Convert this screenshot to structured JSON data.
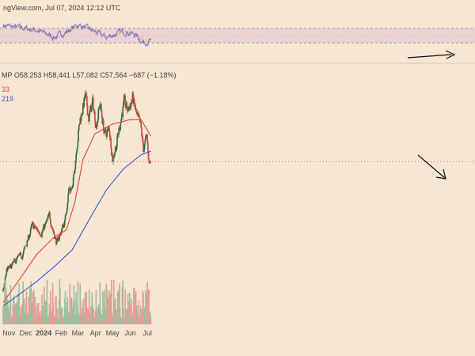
{
  "header": {
    "source_line": "ngView.com, Jul 07, 2024 12:12 UTC",
    "ohlc_line": "MP O58,253 H58,441 L57,082 C57,564 −687 (−1.18%)",
    "ma_red_label": "33",
    "ma_blue_label": "219"
  },
  "colors": {
    "background": "#f6e6d2",
    "candle_up": "#2e6e3a",
    "candle_down": "#c9443a",
    "volume_up": "#9dbfa0",
    "volume_down": "#ec9a93",
    "ma_short": "#e2473f",
    "ma_long": "#3d57e6",
    "oscillator": "#7b6fd0",
    "oscillator_signal": "#d8c15a",
    "annotation": "#111111",
    "axis_text": "#4c4c4c"
  },
  "chart_data": {
    "type": "candlestick",
    "title": "",
    "x_tick_labels": [
      "Nov",
      "Dec",
      "2024",
      "Feb",
      "Mar",
      "Apr",
      "May",
      "Jun",
      "Jul"
    ],
    "y_range": [
      22000,
      76000
    ],
    "last_close": 57564,
    "grid": false,
    "price_points": [
      {
        "date": "2023-10-22",
        "close": 29900
      },
      {
        "date": "2023-10-28",
        "close": 34500
      },
      {
        "date": "2023-11-05",
        "close": 35100
      },
      {
        "date": "2023-11-15",
        "close": 36800
      },
      {
        "date": "2023-11-25",
        "close": 37600
      },
      {
        "date": "2023-12-05",
        "close": 41200
      },
      {
        "date": "2023-12-12",
        "close": 43900
      },
      {
        "date": "2023-12-20",
        "close": 43000
      },
      {
        "date": "2023-12-28",
        "close": 42500
      },
      {
        "date": "2024-01-05",
        "close": 44200
      },
      {
        "date": "2024-01-11",
        "close": 46000
      },
      {
        "date": "2024-01-18",
        "close": 42800
      },
      {
        "date": "2024-01-24",
        "close": 40000
      },
      {
        "date": "2024-02-01",
        "close": 42800
      },
      {
        "date": "2024-02-08",
        "close": 45300
      },
      {
        "date": "2024-02-14",
        "close": 51700
      },
      {
        "date": "2024-02-21",
        "close": 51900
      },
      {
        "date": "2024-02-28",
        "close": 61000
      },
      {
        "date": "2024-03-05",
        "close": 66500
      },
      {
        "date": "2024-03-14",
        "close": 71400
      },
      {
        "date": "2024-03-20",
        "close": 67000
      },
      {
        "date": "2024-03-27",
        "close": 70000
      },
      {
        "date": "2024-04-02",
        "close": 65500
      },
      {
        "date": "2024-04-09",
        "close": 70000
      },
      {
        "date": "2024-04-17",
        "close": 63200
      },
      {
        "date": "2024-04-25",
        "close": 64500
      },
      {
        "date": "2024-05-01",
        "close": 58300
      },
      {
        "date": "2024-05-08",
        "close": 61500
      },
      {
        "date": "2024-05-15",
        "close": 66300
      },
      {
        "date": "2024-05-21",
        "close": 70100
      },
      {
        "date": "2024-05-28",
        "close": 68400
      },
      {
        "date": "2024-06-05",
        "close": 71100
      },
      {
        "date": "2024-06-12",
        "close": 67300
      },
      {
        "date": "2024-06-19",
        "close": 65000
      },
      {
        "date": "2024-06-24",
        "close": 60300
      },
      {
        "date": "2024-06-30",
        "close": 62800
      },
      {
        "date": "2024-07-04",
        "close": 57200
      },
      {
        "date": "2024-07-07",
        "close": 57564
      }
    ],
    "ma_short_points": [
      {
        "date": "2023-10-22",
        "value": 27500
      },
      {
        "date": "2023-11-20",
        "value": 32500
      },
      {
        "date": "2023-12-20",
        "value": 37800
      },
      {
        "date": "2024-01-20",
        "value": 41500
      },
      {
        "date": "2024-02-10",
        "value": 43000
      },
      {
        "date": "2024-02-25",
        "value": 49000
      },
      {
        "date": "2024-03-10",
        "value": 58000
      },
      {
        "date": "2024-03-31",
        "value": 63500
      },
      {
        "date": "2024-04-30",
        "value": 65500
      },
      {
        "date": "2024-05-31",
        "value": 66500
      },
      {
        "date": "2024-06-20",
        "value": 66500
      },
      {
        "date": "2024-07-07",
        "value": 63000
      }
    ],
    "ma_long_points": [
      {
        "date": "2023-10-22",
        "value": 26800
      },
      {
        "date": "2023-11-20",
        "value": 29300
      },
      {
        "date": "2023-12-20",
        "value": 32000
      },
      {
        "date": "2024-01-20",
        "value": 35200
      },
      {
        "date": "2024-02-20",
        "value": 38700
      },
      {
        "date": "2024-03-20",
        "value": 45000
      },
      {
        "date": "2024-04-20",
        "value": 51500
      },
      {
        "date": "2024-05-20",
        "value": 56000
      },
      {
        "date": "2024-06-20",
        "value": 59000
      },
      {
        "date": "2024-07-07",
        "value": 59800
      }
    ],
    "oscillator_range": [
      0,
      100
    ],
    "oscillator_band": [
      30,
      70
    ],
    "oscillator_points": [
      {
        "date": "2023-10-22",
        "value": 78
      },
      {
        "date": "2023-11-20",
        "value": 72
      },
      {
        "date": "2023-12-20",
        "value": 65
      },
      {
        "date": "2024-01-20",
        "value": 45
      },
      {
        "date": "2024-02-10",
        "value": 60
      },
      {
        "date": "2024-03-01",
        "value": 80
      },
      {
        "date": "2024-03-25",
        "value": 65
      },
      {
        "date": "2024-04-20",
        "value": 45
      },
      {
        "date": "2024-05-20",
        "value": 62
      },
      {
        "date": "2024-06-10",
        "value": 52
      },
      {
        "date": "2024-06-25",
        "value": 30
      },
      {
        "date": "2024-07-07",
        "value": 36
      }
    ]
  }
}
